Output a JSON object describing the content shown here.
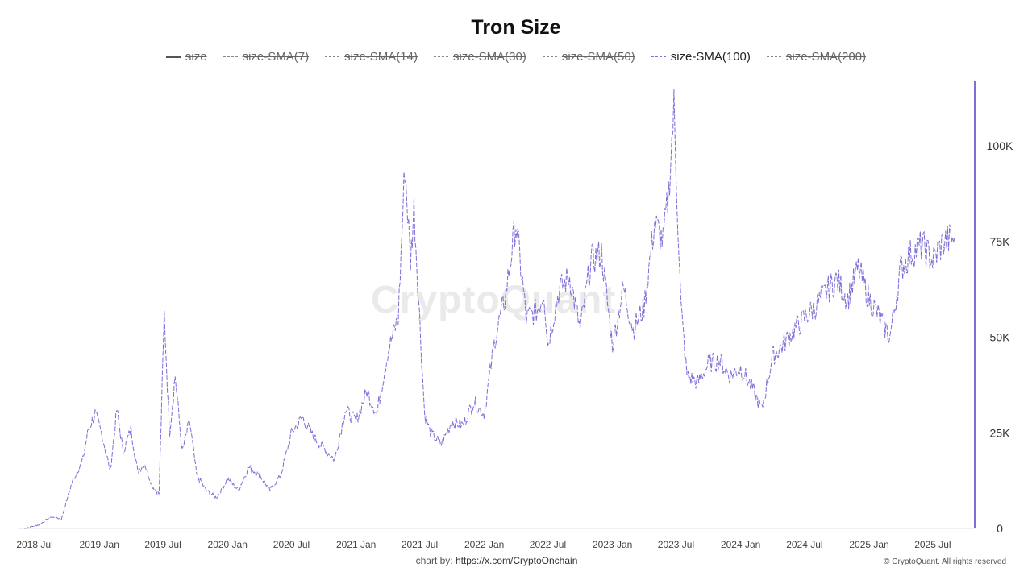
{
  "chart_data": {
    "type": "line",
    "title": "Tron Size",
    "xlabel": "",
    "ylabel": "",
    "ylim": [
      0,
      115000
    ],
    "y_ticks": [
      0,
      25000,
      50000,
      75000,
      100000
    ],
    "y_tick_labels": [
      "0",
      "25K",
      "50K",
      "75K",
      "100K"
    ],
    "x_ticks": [
      "2018-07-01",
      "2019-01-01",
      "2019-07-01",
      "2020-01-01",
      "2020-07-01",
      "2021-01-01",
      "2021-07-01",
      "2022-01-01",
      "2022-07-01",
      "2023-01-01",
      "2023-07-01",
      "2024-01-01",
      "2024-07-01",
      "2025-01-01",
      "2025-07-01"
    ],
    "x_tick_labels": [
      "2018 Jul",
      "2019 Jan",
      "2019 Jul",
      "2020 Jan",
      "2020 Jul",
      "2021 Jan",
      "2021 Jul",
      "2022 Jan",
      "2022 Jul",
      "2023 Jan",
      "2023 Jul",
      "2024 Jan",
      "2024 Jul",
      "2025 Jan",
      "2025 Jul"
    ],
    "xlim": [
      "2018-06-01",
      "2025-09-15"
    ],
    "y_axis_position": "right",
    "grid": false,
    "legend_placement": "top-center",
    "series_color": "#7b6fd8",
    "series": [
      {
        "name": "size-SMA(100)",
        "visible": true,
        "x": [
          "2018-06-01",
          "2018-07-15",
          "2018-08-15",
          "2018-09-15",
          "2018-10-15",
          "2018-11-15",
          "2018-12-01",
          "2018-12-20",
          "2019-01-10",
          "2019-02-01",
          "2019-02-20",
          "2019-03-10",
          "2019-04-01",
          "2019-04-20",
          "2019-05-10",
          "2019-06-01",
          "2019-06-20",
          "2019-07-05",
          "2019-07-20",
          "2019-08-05",
          "2019-08-25",
          "2019-09-15",
          "2019-10-05",
          "2019-11-01",
          "2019-12-01",
          "2020-01-01",
          "2020-02-01",
          "2020-03-01",
          "2020-04-01",
          "2020-05-01",
          "2020-06-01",
          "2020-07-01",
          "2020-08-01",
          "2020-09-01",
          "2020-10-01",
          "2020-11-01",
          "2020-12-01",
          "2021-01-01",
          "2021-02-01",
          "2021-03-01",
          "2021-04-01",
          "2021-05-01",
          "2021-05-20",
          "2021-06-05",
          "2021-06-15",
          "2021-07-01",
          "2021-07-15",
          "2021-08-01",
          "2021-09-01",
          "2021-10-01",
          "2021-11-01",
          "2021-12-01",
          "2022-01-01",
          "2022-02-01",
          "2022-03-01",
          "2022-04-01",
          "2022-05-01",
          "2022-06-01",
          "2022-06-20",
          "2022-07-01",
          "2022-08-01",
          "2022-09-01",
          "2022-10-01",
          "2022-11-01",
          "2022-12-01",
          "2023-01-01",
          "2023-02-01",
          "2023-03-01",
          "2023-04-01",
          "2023-05-01",
          "2023-05-25",
          "2023-06-10",
          "2023-06-25",
          "2023-07-15",
          "2023-08-01",
          "2023-09-01",
          "2023-10-01",
          "2023-11-01",
          "2023-12-01",
          "2024-01-01",
          "2024-02-01",
          "2024-03-01",
          "2024-04-01",
          "2024-05-01",
          "2024-06-01",
          "2024-07-01",
          "2024-08-01",
          "2024-09-01",
          "2024-10-01",
          "2024-11-01",
          "2024-12-01",
          "2025-01-01",
          "2025-02-01",
          "2025-03-01",
          "2025-04-01",
          "2025-05-01",
          "2025-06-01",
          "2025-07-01",
          "2025-08-01",
          "2025-09-01"
        ],
        "values": [
          0,
          1000,
          3000,
          2500,
          12000,
          18000,
          26000,
          30000,
          24000,
          15000,
          31000,
          20000,
          26000,
          15000,
          17000,
          11000,
          9000,
          56000,
          25000,
          40000,
          20000,
          28000,
          14000,
          10000,
          8000,
          13000,
          10000,
          16000,
          14000,
          10000,
          14000,
          25000,
          29000,
          24000,
          21000,
          18000,
          31000,
          28000,
          36000,
          30000,
          46000,
          55000,
          95000,
          70000,
          84000,
          55000,
          30000,
          25000,
          22000,
          28000,
          27000,
          33000,
          30000,
          50000,
          60000,
          80000,
          55000,
          57000,
          62000,
          48000,
          62000,
          66000,
          52000,
          70000,
          72000,
          48000,
          63000,
          52000,
          58000,
          80000,
          75000,
          88000,
          110000,
          58000,
          40000,
          38000,
          43000,
          44000,
          40000,
          42000,
          37000,
          31000,
          45000,
          48000,
          52000,
          55000,
          58000,
          62000,
          65000,
          60000,
          68000,
          60000,
          55000,
          50000,
          68000,
          72000,
          74000,
          70000,
          75000,
          76000
        ]
      }
    ]
  },
  "legend": [
    {
      "label": "size",
      "visible": false
    },
    {
      "label": "size-SMA(7)",
      "visible": false
    },
    {
      "label": "size-SMA(14)",
      "visible": false
    },
    {
      "label": "size-SMA(30)",
      "visible": false
    },
    {
      "label": "size-SMA(50)",
      "visible": false
    },
    {
      "label": "size-SMA(100)",
      "visible": true
    },
    {
      "label": "size-SMA(200)",
      "visible": false
    }
  ],
  "watermark": "CryptoQuant",
  "footer": {
    "credit_prefix": "chart by: ",
    "credit_link": "https://x.com/CryptoOnchain"
  },
  "copyright": "© CryptoQuant. All rights reserved"
}
